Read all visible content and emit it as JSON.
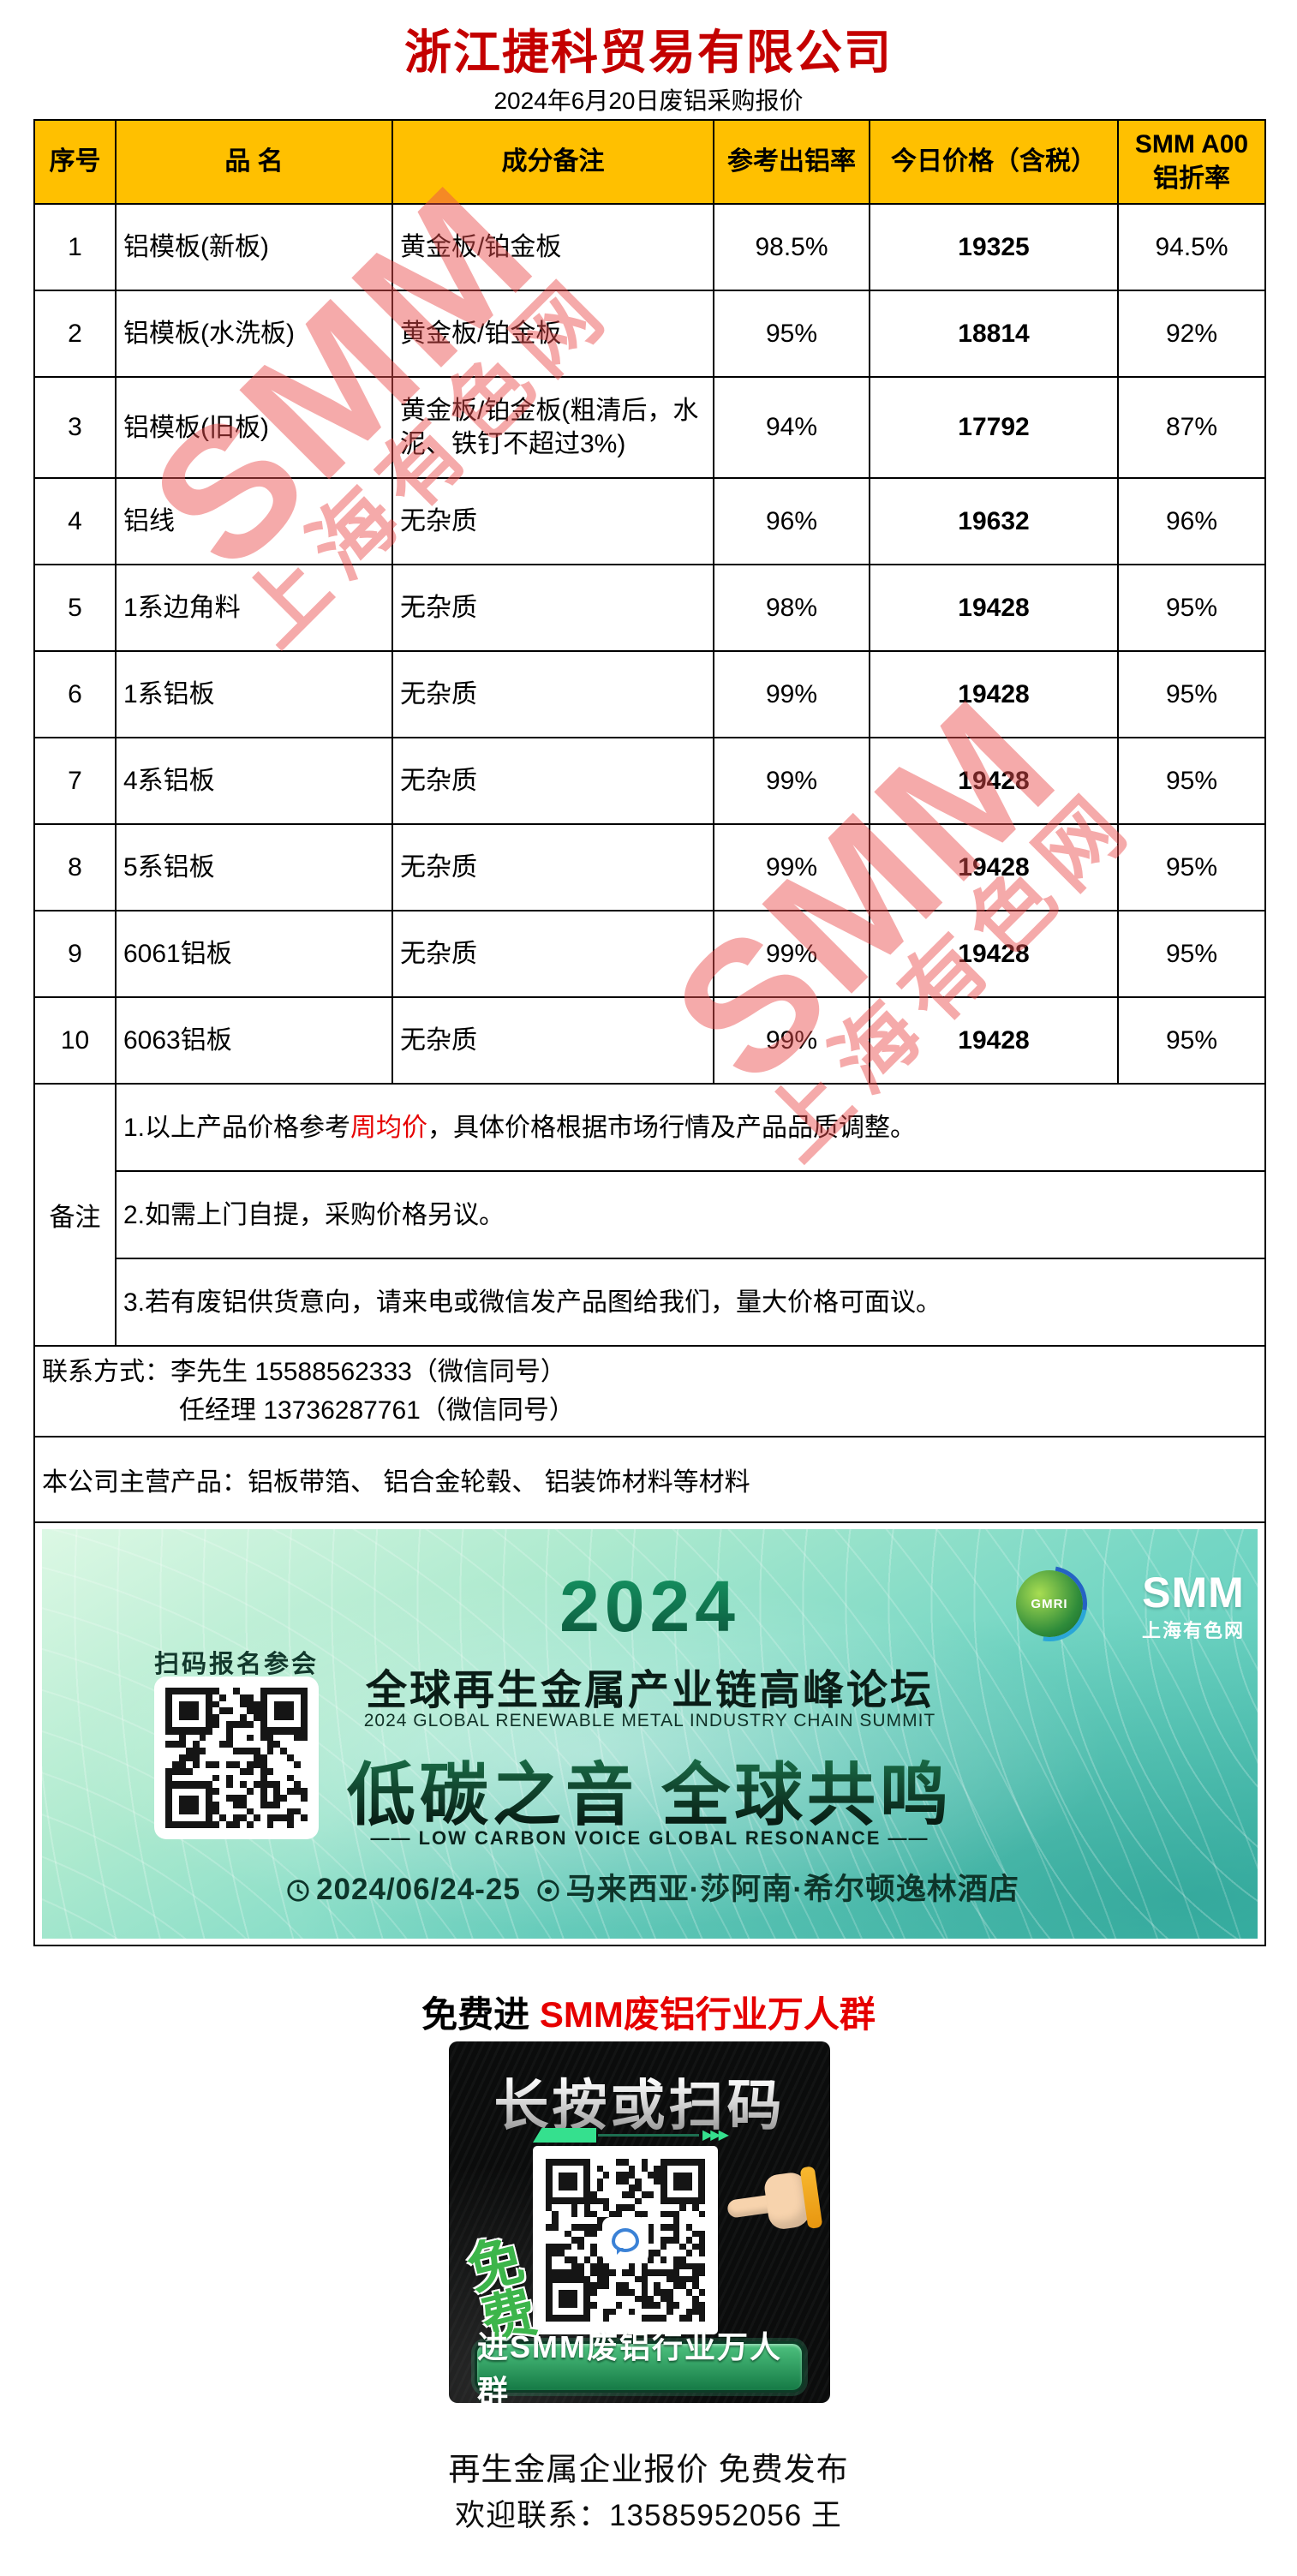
{
  "title": "浙江捷科贸易有限公司",
  "subtitle": "2024年6月20日废铝采购报价",
  "colors": {
    "header_bg": "#FFC000",
    "title_red": "#C40000",
    "accent_red": "#E60000",
    "watermark_red": "rgba(235,77,77,0.48)",
    "button_green": "#157A45",
    "banner_teal": "#4CC4B5"
  },
  "table": {
    "headers": [
      "序号",
      "品  名",
      "成分备注",
      "参考出铝率",
      "今日价格（含税）",
      "SMM A00铝折率"
    ],
    "rows": [
      {
        "no": "1",
        "name": "铝模板(新板)",
        "spec": "黄金板/铂金板",
        "rate": "98.5%",
        "price": "19325",
        "ratio": "94.5%"
      },
      {
        "no": "2",
        "name": "铝模板(水洗板)",
        "spec": "黄金板/铂金板",
        "rate": "95%",
        "price": "18814",
        "ratio": "92%"
      },
      {
        "no": "3",
        "name": "铝模板(旧板)",
        "spec": "黄金板/铂金板(粗清后，水泥、铁钉不超过3%)",
        "rate": "94%",
        "price": "17792",
        "ratio": "87%"
      },
      {
        "no": "4",
        "name": "铝线",
        "spec": "无杂质",
        "rate": "96%",
        "price": "19632",
        "ratio": "96%"
      },
      {
        "no": "5",
        "name": "1系边角料",
        "spec": "无杂质",
        "rate": "98%",
        "price": "19428",
        "ratio": "95%"
      },
      {
        "no": "6",
        "name": "1系铝板",
        "spec": "无杂质",
        "rate": "99%",
        "price": "19428",
        "ratio": "95%"
      },
      {
        "no": "7",
        "name": "4系铝板",
        "spec": "无杂质",
        "rate": "99%",
        "price": "19428",
        "ratio": "95%"
      },
      {
        "no": "8",
        "name": "5系铝板",
        "spec": "无杂质",
        "rate": "99%",
        "price": "19428",
        "ratio": "95%"
      },
      {
        "no": "9",
        "name": "6061铝板",
        "spec": "无杂质",
        "rate": "99%",
        "price": "19428",
        "ratio": "95%"
      },
      {
        "no": "10",
        "name": "6063铝板",
        "spec": "无杂质",
        "rate": "99%",
        "price": "19428",
        "ratio": "95%"
      }
    ]
  },
  "notes": {
    "label": "备注",
    "note1_pre": "1.以上产品价格参考",
    "note1_red": "周均价",
    "note1_post": "，具体价格根据市场行情及产品品质调整。",
    "note2": "2.如需上门自提，采购价格另议。",
    "note3": "3.若有废铝供货意向，请来电或微信发产品图给我们，量大价格可面议。"
  },
  "contact": {
    "line1": "联系方式：李先生 15588562333（微信同号）",
    "line2": "任经理 13736287761（微信同号）"
  },
  "products": "本公司主营产品：铝板带箔、 铝合金轮毂、 铝装饰材料等材料",
  "banner": {
    "scan_label": "扫码报名参会",
    "year": "2024",
    "title_cn": "全球再生金属产业链高峰论坛",
    "title_en": "2024 GLOBAL RENEWABLE METAL INDUSTRY CHAIN SUMMIT",
    "slogan": "低碳之音 全球共鸣",
    "slogan_en": "—— LOW CARBON VOICE GLOBAL RESONANCE ——",
    "date": "2024/06/24-25",
    "venue": "马来西亚·莎阿南·希尔顿逸林酒店",
    "gmri_label": "GMRI",
    "smm_word": "SMM",
    "smm_sub": "上海有色网"
  },
  "promo": {
    "headline_black": "免费进 ",
    "headline_red": "SMM废铝行业万人群",
    "qr_title": "长按或扫码",
    "arrows": "▶▶▶",
    "free_label": "免费",
    "button_label": "进SMM废铝行业万人群"
  },
  "footer": {
    "line1": "再生金属企业报价 免费发布",
    "line2": "欢迎联系：13585952056 王"
  },
  "watermark": {
    "line1": "SMM",
    "line2": "上海有色网"
  }
}
